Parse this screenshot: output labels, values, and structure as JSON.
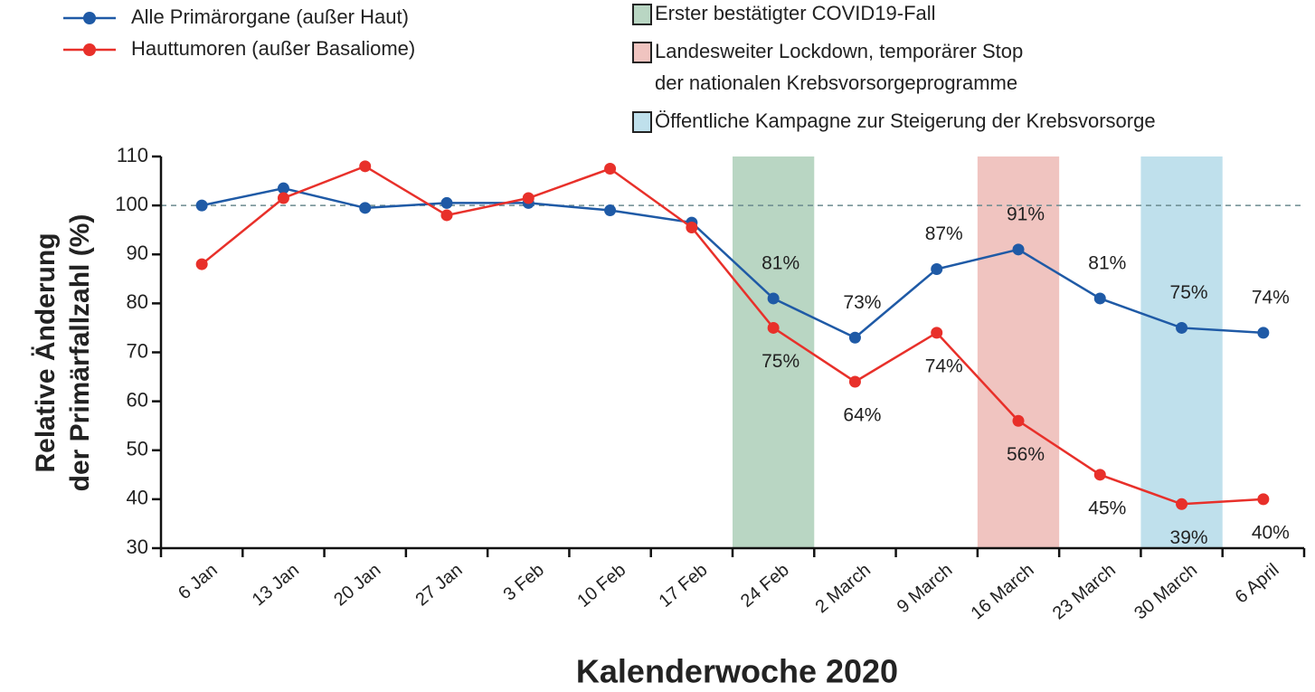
{
  "chart_data": {
    "type": "line",
    "xlabel": "Kalenderwoche 2020",
    "ylabel": [
      "Relative Änderung",
      "der Primärfallzahl (%)"
    ],
    "categories": [
      "6 Jan",
      "13 Jan",
      "20 Jan",
      "27 Jan",
      "3 Feb",
      "10 Feb",
      "17 Feb",
      "24 Feb",
      "2 March",
      "9 March",
      "16 March",
      "23 March",
      "30 March",
      "6 April"
    ],
    "series": [
      {
        "name": "Alle Primärorgane (außer Haut)",
        "color": "#1f5aa6",
        "values": [
          100,
          103.5,
          99.5,
          100.5,
          100.5,
          99,
          96.5,
          81,
          73,
          87,
          91,
          81,
          75,
          74
        ],
        "value_labels": [
          null,
          null,
          null,
          null,
          null,
          null,
          null,
          "81%",
          "73%",
          "87%",
          "91%",
          "81%",
          "75%",
          "74%"
        ]
      },
      {
        "name": "Hauttumoren (außer Basaliome)",
        "color": "#e8302a",
        "values": [
          88,
          101.5,
          108,
          98,
          101.5,
          107.5,
          95.5,
          75,
          64,
          74,
          56,
          45,
          39,
          40
        ],
        "value_labels": [
          null,
          null,
          null,
          null,
          null,
          null,
          null,
          "75%",
          "64%",
          "74%",
          "56%",
          "45%",
          "39%",
          "40%"
        ]
      }
    ],
    "shaded": [
      {
        "category": "24 Feb",
        "color": "#b9d6c3",
        "label": [
          "Erster bestätigter COVID19-Fall"
        ]
      },
      {
        "category": "16 March",
        "color": "#f0c4c0",
        "label": [
          "Landesweiter Lockdown, temporärer Stop",
          "der nationalen Krebsvorsorgeprogramme"
        ]
      },
      {
        "category": "30 March",
        "color": "#bfe0ec",
        "label": [
          "Öffentliche Kampagne zur Steigerung der Krebsvorsorge"
        ]
      }
    ],
    "reference_line": 100,
    "ylim": [
      30,
      110
    ],
    "yticks": [
      30,
      40,
      50,
      60,
      70,
      80,
      90,
      100,
      110
    ]
  }
}
